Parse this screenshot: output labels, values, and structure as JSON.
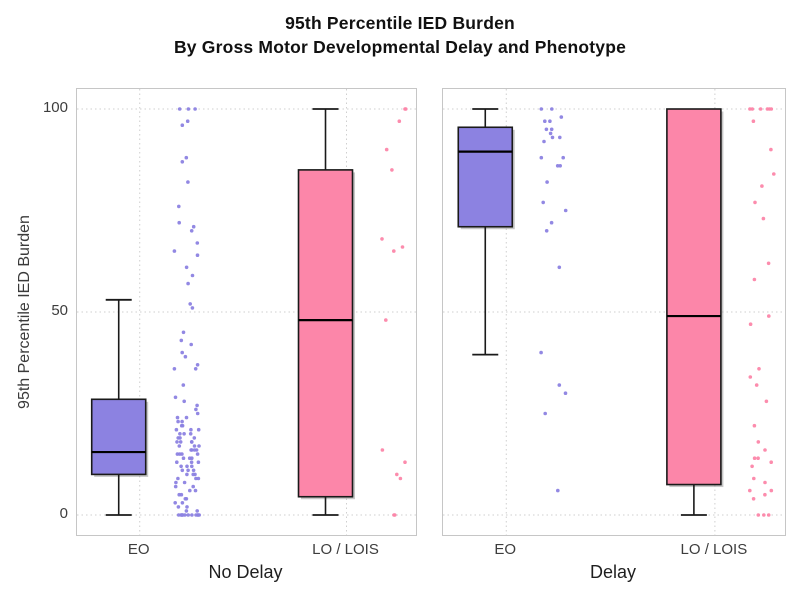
{
  "title": {
    "line1": "95th Percentile IED Burden",
    "line2": "By Gross Motor Developmental Delay and Phenotype"
  },
  "y_axis": {
    "label": "95th Percentile IED Burden",
    "tick_labels": [
      "0",
      "50",
      "100"
    ],
    "tick_values": [
      0,
      50,
      100
    ],
    "range": [
      0,
      100
    ]
  },
  "colors": {
    "eo_fill": "#8c82e1",
    "lo_fill": "#fc86a9",
    "box_border": "#1a1a1a",
    "median": "#000000",
    "grid": "#cfcfcf",
    "panel_border": "#c6c6c6",
    "tick_text": "#3d3d3d",
    "shadow": "rgba(130,130,130,0.45)"
  },
  "chart_data": {
    "type": "boxplot-with-jitter",
    "title": "95th Percentile IED Burden By Gross Motor Developmental Delay and Phenotype",
    "ylabel": "95th Percentile IED Burden",
    "ylim": [
      0,
      100
    ],
    "yticks": [
      0,
      50,
      100
    ],
    "grid": "dotted",
    "facets": [
      {
        "label": "No Delay",
        "groups": [
          {
            "category": "EO",
            "color_key": "eo_fill",
            "box": {
              "whisker_low": 0,
              "q1": 10,
              "median": 15.5,
              "q3": 28.5,
              "whisker_high": 53
            },
            "points": [
              100,
              100,
              100,
              97,
              96,
              88,
              87,
              82,
              76,
              72,
              71,
              70,
              67,
              65,
              64,
              61,
              59,
              57,
              52,
              51,
              45,
              43,
              42,
              40,
              39,
              37,
              36,
              36,
              32,
              29,
              28,
              27,
              26,
              25,
              24,
              24,
              23,
              23,
              22,
              22,
              21,
              21,
              21,
              20,
              20,
              20,
              19,
              19,
              19,
              18,
              18,
              18,
              18,
              17,
              17,
              17,
              16,
              16,
              16,
              16,
              15,
              15,
              15,
              15,
              14,
              14,
              14,
              13,
              13,
              13,
              12,
              12,
              12,
              11,
              11,
              11,
              10,
              10,
              10,
              9,
              9,
              9,
              8,
              8,
              7,
              7,
              6,
              6,
              5,
              5,
              4,
              4,
              3,
              3,
              2,
              2,
              1,
              1,
              0,
              0,
              0,
              0,
              0,
              0,
              0,
              0,
              0,
              0,
              0,
              0
            ]
          },
          {
            "category": "LO / LOIS",
            "color_key": "lo_fill",
            "box": {
              "whisker_low": 0,
              "q1": 4.5,
              "median": 48,
              "q3": 85,
              "whisker_high": 100
            },
            "points": [
              100,
              100,
              97,
              90,
              85,
              68,
              66,
              65,
              48,
              16,
              13,
              10,
              9,
              0,
              0
            ]
          }
        ]
      },
      {
        "label": "Delay",
        "groups": [
          {
            "category": "EO",
            "color_key": "eo_fill",
            "box": {
              "whisker_low": 39.5,
              "q1": 71,
              "median": 89.5,
              "q3": 95.5,
              "whisker_high": 100
            },
            "points": [
              100,
              100,
              98,
              97,
              97,
              95,
              95,
              94,
              93,
              93,
              92,
              88,
              88,
              86,
              86,
              82,
              77,
              75,
              72,
              70,
              61,
              40,
              32,
              30,
              25,
              6
            ]
          },
          {
            "category": "LO / LOIS",
            "color_key": "lo_fill",
            "box": {
              "whisker_low": 0,
              "q1": 7.5,
              "median": 49,
              "q3": 100,
              "whisker_high": 100
            },
            "points": [
              100,
              100,
              100,
              100,
              100,
              100,
              97,
              90,
              84,
              81,
              77,
              73,
              62,
              58,
              49,
              47,
              36,
              34,
              32,
              28,
              22,
              18,
              16,
              14,
              14,
              13,
              12,
              9,
              8,
              6,
              6,
              5,
              4,
              0,
              0,
              0
            ]
          }
        ]
      }
    ]
  }
}
